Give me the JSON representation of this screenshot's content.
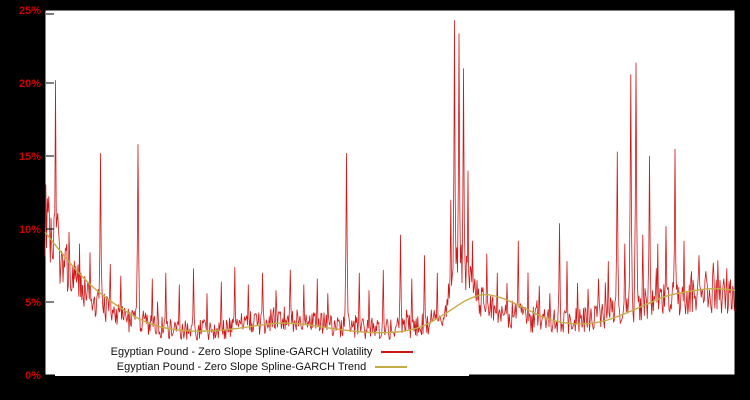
{
  "figure": {
    "background_color": "#000000",
    "plot_background_color": "#ffffff",
    "plot_border_color": "#000000",
    "axis_label_color": "#cc0000"
  },
  "y_axis": {
    "labels": [
      "0%",
      "5%",
      "10%",
      "15%",
      "20%",
      "25%"
    ],
    "min": 0,
    "max": 25,
    "tick_step": 5
  },
  "legend": {
    "items": [
      {
        "label": "Egyptian Pound - Zero Slope Spline-GARCH Volatility",
        "color": "#d01717"
      },
      {
        "label": "Egyptian Pound - Zero Slope Spline-GARCH Trend",
        "color": "#c4ad45"
      }
    ]
  },
  "chart_data": {
    "type": "line",
    "title": "",
    "xlabel": "",
    "ylabel": "",
    "ylim": [
      0,
      25
    ],
    "x_domain": [
      0,
      1
    ],
    "grid": false,
    "legend_position": "bottom-left",
    "series": [
      {
        "name": "Egyptian Pound - Zero Slope Spline-GARCH Volatility",
        "color": "#d01717",
        "style": "spiky",
        "noise_amplitude": 1.2,
        "baseline_points": [
          [
            0.0,
            9.5
          ],
          [
            0.01,
            8.3
          ],
          [
            0.025,
            7.0
          ],
          [
            0.04,
            5.9
          ],
          [
            0.06,
            5.0
          ],
          [
            0.08,
            4.3
          ],
          [
            0.1,
            3.8
          ],
          [
            0.13,
            3.3
          ],
          [
            0.16,
            3.0
          ],
          [
            0.2,
            2.8
          ],
          [
            0.24,
            2.8
          ],
          [
            0.28,
            3.0
          ],
          [
            0.32,
            3.3
          ],
          [
            0.35,
            3.4
          ],
          [
            0.38,
            3.3
          ],
          [
            0.42,
            3.0
          ],
          [
            0.46,
            2.8
          ],
          [
            0.5,
            2.8
          ],
          [
            0.54,
            3.0
          ],
          [
            0.57,
            3.4
          ],
          [
            0.585,
            4.5
          ],
          [
            0.595,
            6.5
          ],
          [
            0.605,
            6.8
          ],
          [
            0.615,
            5.5
          ],
          [
            0.63,
            4.4
          ],
          [
            0.66,
            3.8
          ],
          [
            0.7,
            3.4
          ],
          [
            0.74,
            3.2
          ],
          [
            0.78,
            3.3
          ],
          [
            0.82,
            3.8
          ],
          [
            0.86,
            4.2
          ],
          [
            0.9,
            4.6
          ],
          [
            0.94,
            4.9
          ],
          [
            0.97,
            5.0
          ],
          [
            1.0,
            4.8
          ]
        ],
        "spikes": [
          [
            0.015,
            20.2
          ],
          [
            0.035,
            9.8
          ],
          [
            0.05,
            9.0
          ],
          [
            0.065,
            8.4
          ],
          [
            0.08,
            15.2
          ],
          [
            0.095,
            7.6
          ],
          [
            0.11,
            6.8
          ],
          [
            0.135,
            15.8
          ],
          [
            0.155,
            6.6
          ],
          [
            0.175,
            7.0
          ],
          [
            0.195,
            6.2
          ],
          [
            0.215,
            7.3
          ],
          [
            0.235,
            5.6
          ],
          [
            0.255,
            6.4
          ],
          [
            0.275,
            7.4
          ],
          [
            0.295,
            6.2
          ],
          [
            0.315,
            7.0
          ],
          [
            0.335,
            5.8
          ],
          [
            0.355,
            7.2
          ],
          [
            0.375,
            6.2
          ],
          [
            0.395,
            6.6
          ],
          [
            0.41,
            5.6
          ],
          [
            0.437,
            15.2
          ],
          [
            0.455,
            7.0
          ],
          [
            0.47,
            5.8
          ],
          [
            0.49,
            7.2
          ],
          [
            0.515,
            9.6
          ],
          [
            0.532,
            6.6
          ],
          [
            0.55,
            8.2
          ],
          [
            0.568,
            7.0
          ],
          [
            0.588,
            12.0
          ],
          [
            0.594,
            24.3
          ],
          [
            0.6,
            23.4
          ],
          [
            0.607,
            21.0
          ],
          [
            0.613,
            14.0
          ],
          [
            0.62,
            9.2
          ],
          [
            0.64,
            8.3
          ],
          [
            0.655,
            7.0
          ],
          [
            0.67,
            6.3
          ],
          [
            0.686,
            9.2
          ],
          [
            0.7,
            7.0
          ],
          [
            0.716,
            6.1
          ],
          [
            0.731,
            5.6
          ],
          [
            0.746,
            10.4
          ],
          [
            0.757,
            7.8
          ],
          [
            0.772,
            6.3
          ],
          [
            0.787,
            5.9
          ],
          [
            0.802,
            6.6
          ],
          [
            0.816,
            7.8
          ],
          [
            0.829,
            15.3
          ],
          [
            0.84,
            9.0
          ],
          [
            0.849,
            20.6
          ],
          [
            0.857,
            21.4
          ],
          [
            0.866,
            9.6
          ],
          [
            0.876,
            15.0
          ],
          [
            0.888,
            9.0
          ],
          [
            0.9,
            10.2
          ],
          [
            0.913,
            15.5
          ],
          [
            0.926,
            9.2
          ],
          [
            0.937,
            7.1
          ],
          [
            0.948,
            8.2
          ],
          [
            0.958,
            7.1
          ],
          [
            0.968,
            7.7
          ],
          [
            0.978,
            6.5
          ],
          [
            0.988,
            7.3
          ],
          [
            0.997,
            6.1
          ]
        ]
      },
      {
        "name": "Egyptian Pound - Zero Slope Spline-GARCH Trend",
        "color": "#c4ad45",
        "style": "smooth",
        "points": [
          [
            0.0,
            9.8
          ],
          [
            0.02,
            8.6
          ],
          [
            0.045,
            7.2
          ],
          [
            0.07,
            6.0
          ],
          [
            0.1,
            4.9
          ],
          [
            0.13,
            4.0
          ],
          [
            0.16,
            3.4
          ],
          [
            0.19,
            3.1
          ],
          [
            0.22,
            3.0
          ],
          [
            0.25,
            3.05
          ],
          [
            0.28,
            3.2
          ],
          [
            0.31,
            3.4
          ],
          [
            0.34,
            3.55
          ],
          [
            0.37,
            3.5
          ],
          [
            0.4,
            3.3
          ],
          [
            0.43,
            3.1
          ],
          [
            0.46,
            2.95
          ],
          [
            0.49,
            2.9
          ],
          [
            0.52,
            3.0
          ],
          [
            0.55,
            3.4
          ],
          [
            0.58,
            4.2
          ],
          [
            0.61,
            5.1
          ],
          [
            0.635,
            5.5
          ],
          [
            0.66,
            5.3
          ],
          [
            0.69,
            4.7
          ],
          [
            0.72,
            4.0
          ],
          [
            0.75,
            3.6
          ],
          [
            0.78,
            3.5
          ],
          [
            0.81,
            3.7
          ],
          [
            0.84,
            4.2
          ],
          [
            0.87,
            4.8
          ],
          [
            0.9,
            5.4
          ],
          [
            0.93,
            5.7
          ],
          [
            0.96,
            5.9
          ],
          [
            0.98,
            5.9
          ],
          [
            1.0,
            5.8
          ]
        ]
      }
    ]
  }
}
